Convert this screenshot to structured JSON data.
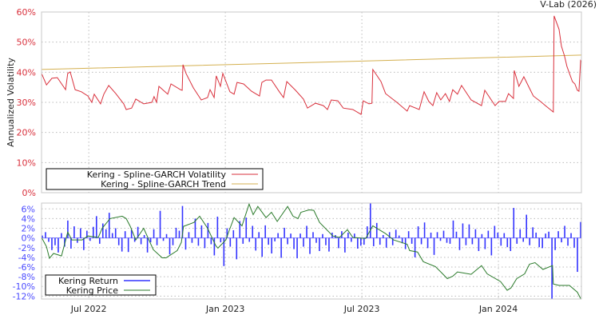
{
  "credit": "V-Lab (2026)",
  "chart_data": [
    {
      "type": "line",
      "title": "",
      "ylabel": "Annualized Volatility",
      "xlabel": "",
      "x_unit": "decimal year",
      "xlim": [
        2022.327,
        2024.304
      ],
      "ylim": [
        0,
        60
      ],
      "yticks": [
        0,
        10,
        20,
        30,
        40,
        50,
        60
      ],
      "ytick_labels": [
        "0%",
        "10%",
        "20%",
        "30%",
        "40%",
        "50%",
        "60%"
      ],
      "grid": true,
      "legend_position": "bottom-left",
      "colors": {
        "volatility": "#d9303c",
        "trend": "#d4b050",
        "tick": "#d9303c"
      },
      "series": [
        {
          "name": "Kering - Spline-GARCH Volatility",
          "points": [
            [
              2022.327,
              39.6
            ],
            [
              2022.345,
              35.8
            ],
            [
              2022.365,
              38.0
            ],
            [
              2022.385,
              38.2
            ],
            [
              2022.415,
              34.2
            ],
            [
              2022.423,
              39.6
            ],
            [
              2022.432,
              40.1
            ],
            [
              2022.45,
              34.2
            ],
            [
              2022.473,
              33.5
            ],
            [
              2022.497,
              32.1
            ],
            [
              2022.511,
              30.0
            ],
            [
              2022.52,
              32.7
            ],
            [
              2022.543,
              29.5
            ],
            [
              2022.555,
              32.7
            ],
            [
              2022.573,
              35.6
            ],
            [
              2022.599,
              32.9
            ],
            [
              2022.628,
              29.5
            ],
            [
              2022.637,
              27.6
            ],
            [
              2022.657,
              28.1
            ],
            [
              2022.672,
              31.1
            ],
            [
              2022.701,
              29.5
            ],
            [
              2022.731,
              30.0
            ],
            [
              2022.739,
              31.9
            ],
            [
              2022.748,
              30.0
            ],
            [
              2022.757,
              35.3
            ],
            [
              2022.789,
              32.7
            ],
            [
              2022.801,
              36.1
            ],
            [
              2022.836,
              34.2
            ],
            [
              2022.842,
              34.0
            ],
            [
              2022.845,
              42.5
            ],
            [
              2022.856,
              39.6
            ],
            [
              2022.883,
              34.8
            ],
            [
              2022.912,
              30.8
            ],
            [
              2022.935,
              31.6
            ],
            [
              2022.944,
              34.2
            ],
            [
              2022.959,
              31.6
            ],
            [
              2022.967,
              38.8
            ],
            [
              2022.982,
              35.3
            ],
            [
              2022.991,
              39.6
            ],
            [
              2023.017,
              33.5
            ],
            [
              2023.032,
              32.7
            ],
            [
              2023.043,
              36.6
            ],
            [
              2023.067,
              36.1
            ],
            [
              2023.096,
              33.7
            ],
            [
              2023.125,
              32.1
            ],
            [
              2023.134,
              36.6
            ],
            [
              2023.149,
              37.4
            ],
            [
              2023.169,
              37.4
            ],
            [
              2023.198,
              33.5
            ],
            [
              2023.213,
              31.6
            ],
            [
              2023.225,
              36.9
            ],
            [
              2023.257,
              34.0
            ],
            [
              2023.286,
              31.1
            ],
            [
              2023.301,
              28.1
            ],
            [
              2023.33,
              29.7
            ],
            [
              2023.359,
              28.9
            ],
            [
              2023.374,
              27.6
            ],
            [
              2023.388,
              30.8
            ],
            [
              2023.412,
              30.5
            ],
            [
              2023.432,
              28.1
            ],
            [
              2023.467,
              27.6
            ],
            [
              2023.497,
              26.0
            ],
            [
              2023.505,
              30.5
            ],
            [
              2023.526,
              29.5
            ],
            [
              2023.537,
              29.7
            ],
            [
              2023.54,
              40.9
            ],
            [
              2023.57,
              36.9
            ],
            [
              2023.587,
              32.9
            ],
            [
              2023.628,
              30.0
            ],
            [
              2023.666,
              27.1
            ],
            [
              2023.675,
              28.9
            ],
            [
              2023.71,
              27.6
            ],
            [
              2023.728,
              33.5
            ],
            [
              2023.745,
              30.3
            ],
            [
              2023.76,
              28.9
            ],
            [
              2023.774,
              33.2
            ],
            [
              2023.789,
              30.8
            ],
            [
              2023.806,
              32.9
            ],
            [
              2023.821,
              30.3
            ],
            [
              2023.833,
              34.2
            ],
            [
              2023.85,
              32.7
            ],
            [
              2023.865,
              35.6
            ],
            [
              2023.9,
              30.8
            ],
            [
              2023.938,
              28.9
            ],
            [
              2023.95,
              34.0
            ],
            [
              2023.988,
              28.9
            ],
            [
              2024.002,
              30.3
            ],
            [
              2024.026,
              30.3
            ],
            [
              2024.037,
              32.9
            ],
            [
              2024.055,
              31.3
            ],
            [
              2024.058,
              40.6
            ],
            [
              2024.075,
              35.3
            ],
            [
              2024.093,
              38.5
            ],
            [
              2024.113,
              34.8
            ],
            [
              2024.128,
              32.1
            ],
            [
              2024.154,
              30.3
            ],
            [
              2024.172,
              28.9
            ],
            [
              2024.201,
              26.8
            ],
            [
              2024.204,
              58.7
            ],
            [
              2024.222,
              54.2
            ],
            [
              2024.231,
              48.6
            ],
            [
              2024.242,
              45.4
            ],
            [
              2024.251,
              41.9
            ],
            [
              2024.271,
              36.9
            ],
            [
              2024.28,
              36.1
            ],
            [
              2024.289,
              34.0
            ],
            [
              2024.295,
              33.7
            ],
            [
              2024.301,
              43.8
            ],
            [
              2024.304,
              43.3
            ]
          ]
        },
        {
          "name": "Kering - Spline-GARCH Trend",
          "points": [
            [
              2022.327,
              40.9
            ],
            [
              2023.3,
              43.2
            ],
            [
              2024.304,
              45.7
            ]
          ]
        }
      ]
    },
    {
      "type": "bar+line",
      "xlabel": "",
      "ylabel": "",
      "x_unit": "decimal year",
      "xlim": [
        2022.327,
        2024.304
      ],
      "ylim": [
        -12.6,
        7.2
      ],
      "yticks": [
        6,
        4,
        2,
        0,
        -2,
        -4,
        -6,
        -8,
        -10,
        -12
      ],
      "ytick_labels": [
        "6%",
        "4%",
        "2%",
        "0%",
        "-2%",
        "-4%",
        "-6%",
        "-8%",
        "-10%",
        "-12%"
      ],
      "xticks": [
        2022.5,
        2023.0,
        2023.5,
        2024.0
      ],
      "xtick_labels": [
        "Jul 2022",
        "Jan 2023",
        "Jul 2023",
        "Jan 2024"
      ],
      "grid": true,
      "legend_position": "bottom-left",
      "colors": {
        "return": "#3333ff",
        "price": "#2a7a2a",
        "tick": "#4a4aff"
      },
      "series": [
        {
          "name": "Kering Return",
          "kind": "bar",
          "evenly_spaced": true,
          "values": [
            0.5,
            1.2,
            -0.8,
            -2.5,
            -1.5,
            -3.0,
            1.0,
            -1.8,
            3.6,
            -2.2,
            2.4,
            -1.0,
            2.0,
            -2.5,
            1.5,
            -0.6,
            2.3,
            4.5,
            -1.2,
            3.0,
            1.8,
            5.2,
            1.0,
            2.0,
            -1.5,
            -2.8,
            1.4,
            -2.9,
            1.7,
            -0.8,
            2.3,
            -1.3,
            0.6,
            -3.0,
            -0.9,
            1.8,
            -1.5,
            5.6,
            -0.6,
            0.8,
            -3.4,
            -1.5,
            2.1,
            1.5,
            6.6,
            -2.4,
            1.2,
            -1.0,
            4.0,
            -1.6,
            2.6,
            -2.1,
            3.1,
            -1.3,
            -3.6,
            4.4,
            -0.9,
            -5.8,
            2.0,
            -1.8,
            1.6,
            -4.4,
            3.5,
            -1.2,
            4.2,
            -0.8,
            2.5,
            -2.6,
            1.2,
            -3.9,
            2.6,
            -1.4,
            -3.2,
            -0.7,
            1.0,
            -4.1,
            2.1,
            -1.3,
            0.9,
            -2.3,
            -4.2,
            0.9,
            -1.8,
            2.5,
            -3.3,
            1.2,
            -1.0,
            -2.7,
            0.8,
            -1.5,
            -2.8,
            1.1,
            0.6,
            -2.1,
            1.4,
            -3.0,
            1.1,
            -0.8,
            0.9,
            -2.2,
            -1.6,
            -1.4,
            2.4,
            7.2,
            -1.7,
            3.1,
            -1.4,
            0.6,
            -2.0,
            1.2,
            -1.5,
            1.7,
            0.5,
            -1.1,
            -2.3,
            1.4,
            -1.2,
            -4.0,
            2.4,
            -1.3,
            3.2,
            -2.1,
            1.1,
            -3.5,
            1.2,
            -0.6,
            1.5,
            -1.0,
            -1.2,
            3.6,
            1.3,
            -2.5,
            3.0,
            -1.5,
            2.8,
            -1.3,
            1.8,
            -2.7,
            0.8,
            -2.3,
            1.5,
            -3.6,
            2.5,
            1.1,
            -1.6,
            1.0,
            -1.9,
            -2.7,
            6.2,
            -1.2,
            1.8,
            -0.8,
            4.8,
            -1.5,
            2.2,
            1.1,
            -1.9,
            -2.1,
            0.9,
            1.3,
            -12.6,
            -2.5,
            1.4,
            -0.9,
            2.5,
            -1.6,
            1.0,
            -2.0,
            -7.0,
            3.3
          ]
        },
        {
          "name": "Kering Price",
          "kind": "line",
          "points": [
            [
              2022.327,
              0.1
            ],
            [
              2022.345,
              -1.8
            ],
            [
              2022.356,
              -4.2
            ],
            [
              2022.371,
              -3.2
            ],
            [
              2022.4,
              -3.7
            ],
            [
              2022.423,
              1.2
            ],
            [
              2022.438,
              -0.4
            ],
            [
              2022.476,
              -0.4
            ],
            [
              2022.497,
              0.4
            ],
            [
              2022.535,
              0.1
            ],
            [
              2022.549,
              2.0
            ],
            [
              2022.578,
              4.0
            ],
            [
              2022.622,
              4.5
            ],
            [
              2022.637,
              4.0
            ],
            [
              2022.652,
              2.4
            ],
            [
              2022.672,
              -0.4
            ],
            [
              2022.701,
              2.0
            ],
            [
              2022.736,
              -2.4
            ],
            [
              2022.769,
              -4.1
            ],
            [
              2022.783,
              -4.1
            ],
            [
              2022.824,
              -2.6
            ],
            [
              2022.839,
              -0.9
            ],
            [
              2022.847,
              2.4
            ],
            [
              2022.885,
              3.2
            ],
            [
              2022.906,
              4.5
            ],
            [
              2022.935,
              2.0
            ],
            [
              2022.965,
              -1.6
            ],
            [
              2022.973,
              -2.1
            ],
            [
              2023.002,
              -0.4
            ],
            [
              2023.014,
              1.5
            ],
            [
              2023.032,
              4.2
            ],
            [
              2023.061,
              2.5
            ],
            [
              2023.087,
              7.0
            ],
            [
              2023.102,
              4.8
            ],
            [
              2023.119,
              6.5
            ],
            [
              2023.149,
              4.2
            ],
            [
              2023.169,
              5.3
            ],
            [
              2023.19,
              3.4
            ],
            [
              2023.228,
              6.5
            ],
            [
              2023.248,
              4.5
            ],
            [
              2023.266,
              4.0
            ],
            [
              2023.277,
              5.3
            ],
            [
              2023.307,
              5.8
            ],
            [
              2023.324,
              5.7
            ],
            [
              2023.345,
              3.2
            ],
            [
              2023.394,
              0.4
            ],
            [
              2023.418,
              0.1
            ],
            [
              2023.447,
              1.7
            ],
            [
              2023.467,
              0.1
            ],
            [
              2023.514,
              -0.1
            ],
            [
              2023.54,
              2.5
            ],
            [
              2023.587,
              0.9
            ],
            [
              2023.616,
              -0.4
            ],
            [
              2023.666,
              -1.3
            ],
            [
              2023.675,
              -2.6
            ],
            [
              2023.704,
              -2.9
            ],
            [
              2023.725,
              -4.9
            ],
            [
              2023.769,
              -5.9
            ],
            [
              2023.789,
              -7.0
            ],
            [
              2023.813,
              -8.4
            ],
            [
              2023.833,
              -7.9
            ],
            [
              2023.85,
              -7.0
            ],
            [
              2023.9,
              -7.5
            ],
            [
              2023.938,
              -5.7
            ],
            [
              2023.959,
              -7.4
            ],
            [
              2024.008,
              -9.0
            ],
            [
              2024.032,
              -10.8
            ],
            [
              2024.046,
              -10.3
            ],
            [
              2024.067,
              -8.4
            ],
            [
              2024.096,
              -7.4
            ],
            [
              2024.114,
              -5.4
            ],
            [
              2024.134,
              -5.1
            ],
            [
              2024.163,
              -6.5
            ],
            [
              2024.198,
              -5.7
            ],
            [
              2024.201,
              -9.5
            ],
            [
              2024.222,
              -9.8
            ],
            [
              2024.26,
              -9.8
            ],
            [
              2024.289,
              -11.2
            ],
            [
              2024.301,
              -12.5
            ]
          ]
        }
      ]
    }
  ]
}
